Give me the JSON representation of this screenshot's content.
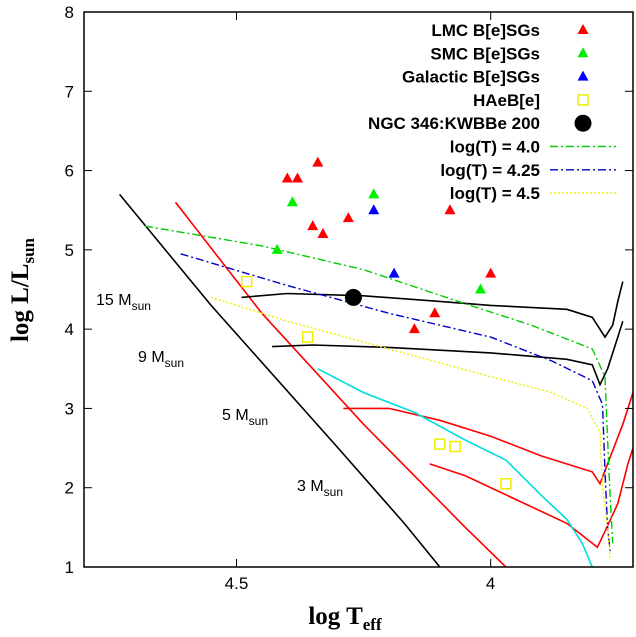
{
  "chart_data": {
    "type": "scatter",
    "title": "",
    "xlabel": {
      "main": "log  T",
      "sub": "eff"
    },
    "ylabel": {
      "main": "log  L/L",
      "sub": "sun"
    },
    "xlim": [
      4.8,
      3.72
    ],
    "xscale": "reversed",
    "ylim": [
      1,
      8
    ],
    "xticks": [
      {
        "value": 4.5,
        "label": "4.5"
      },
      {
        "value": 4.0,
        "label": "4"
      }
    ],
    "yticks": [
      {
        "value": 1,
        "label": "1"
      },
      {
        "value": 2,
        "label": "2"
      },
      {
        "value": 3,
        "label": "3"
      },
      {
        "value": 4,
        "label": "4"
      },
      {
        "value": 5,
        "label": "5"
      },
      {
        "value": 6,
        "label": "6"
      },
      {
        "value": 7,
        "label": "7"
      },
      {
        "value": 8,
        "label": "8"
      }
    ],
    "legend_position": "top-right",
    "series": [
      {
        "name": "LMC B[e]SGs",
        "marker": "triangle",
        "color": "#ff0000",
        "points": [
          {
            "x": 4.4,
            "y": 5.9
          },
          {
            "x": 4.38,
            "y": 5.9
          },
          {
            "x": 4.34,
            "y": 6.1
          },
          {
            "x": 4.35,
            "y": 5.3
          },
          {
            "x": 4.33,
            "y": 5.2
          },
          {
            "x": 4.28,
            "y": 5.4
          },
          {
            "x": 4.08,
            "y": 5.5
          },
          {
            "x": 4.0,
            "y": 4.7
          },
          {
            "x": 4.11,
            "y": 4.2
          },
          {
            "x": 4.15,
            "y": 4.0
          }
        ]
      },
      {
        "name": "SMC B[e]SGs",
        "marker": "triangle",
        "color": "#00ee00",
        "points": [
          {
            "x": 4.39,
            "y": 5.6
          },
          {
            "x": 4.42,
            "y": 5.0
          },
          {
            "x": 4.23,
            "y": 5.7
          },
          {
            "x": 4.02,
            "y": 4.5
          }
        ]
      },
      {
        "name": "Galactic B[e]SGs",
        "marker": "triangle",
        "color": "#0000ff",
        "points": [
          {
            "x": 4.23,
            "y": 5.5
          },
          {
            "x": 4.19,
            "y": 4.7
          }
        ]
      },
      {
        "name": "HAeB[e]",
        "marker": "open-square",
        "color": "#eeee00",
        "points": [
          {
            "x": 4.48,
            "y": 4.6
          },
          {
            "x": 4.36,
            "y": 3.9
          },
          {
            "x": 4.1,
            "y": 2.55
          },
          {
            "x": 4.07,
            "y": 2.52
          },
          {
            "x": 3.97,
            "y": 2.05
          }
        ]
      },
      {
        "name": "NGC 346:KWBBe 200",
        "marker": "filled-circle",
        "color": "#000000",
        "points": [
          {
            "x": 4.27,
            "y": 4.4
          }
        ]
      },
      {
        "name": "log(T) = 4.0",
        "marker": "line",
        "dash": "dash-dot",
        "color": "#00cc00",
        "points": [
          {
            "x": 4.68,
            "y": 5.3
          },
          {
            "x": 4.45,
            "y": 5.05
          },
          {
            "x": 4.25,
            "y": 4.75
          },
          {
            "x": 4.05,
            "y": 4.32
          },
          {
            "x": 3.92,
            "y": 4.05
          },
          {
            "x": 3.8,
            "y": 3.75
          },
          {
            "x": 3.775,
            "y": 3.4
          },
          {
            "x": 3.77,
            "y": 2.6
          },
          {
            "x": 3.765,
            "y": 1.9
          },
          {
            "x": 3.76,
            "y": 1.3
          }
        ]
      },
      {
        "name": "log(T) = 4.25",
        "marker": "line",
        "dash": "dash-dot",
        "color": "#0000cc",
        "points": [
          {
            "x": 4.61,
            "y": 4.95
          },
          {
            "x": 4.4,
            "y": 4.55
          },
          {
            "x": 4.2,
            "y": 4.2
          },
          {
            "x": 4.0,
            "y": 3.9
          },
          {
            "x": 3.88,
            "y": 3.6
          },
          {
            "x": 3.8,
            "y": 3.35
          },
          {
            "x": 3.78,
            "y": 3.05
          },
          {
            "x": 3.775,
            "y": 2.2
          },
          {
            "x": 3.77,
            "y": 1.5
          },
          {
            "x": 3.765,
            "y": 1.2
          }
        ]
      },
      {
        "name": "log(T) = 4.5",
        "marker": "line",
        "dash": "dotted",
        "color": "#eeee00",
        "points": [
          {
            "x": 4.55,
            "y": 4.4
          },
          {
            "x": 4.4,
            "y": 4.1
          },
          {
            "x": 4.2,
            "y": 3.75
          },
          {
            "x": 4.0,
            "y": 3.4
          },
          {
            "x": 3.88,
            "y": 3.2
          },
          {
            "x": 3.81,
            "y": 3.0
          },
          {
            "x": 3.785,
            "y": 2.7
          },
          {
            "x": 3.78,
            "y": 2.0
          },
          {
            "x": 3.77,
            "y": 1.5
          },
          {
            "x": 3.765,
            "y": 1.1
          }
        ]
      }
    ],
    "tracks": [
      {
        "label": "15 M",
        "label_sub": "sun",
        "color": "#000000",
        "points": [
          {
            "x": 4.49,
            "y": 4.4
          },
          {
            "x": 4.4,
            "y": 4.45
          },
          {
            "x": 4.25,
            "y": 4.42
          },
          {
            "x": 4.1,
            "y": 4.35
          },
          {
            "x": 4.0,
            "y": 4.3
          },
          {
            "x": 3.85,
            "y": 4.25
          },
          {
            "x": 3.8,
            "y": 4.15
          },
          {
            "x": 3.775,
            "y": 3.9
          },
          {
            "x": 3.76,
            "y": 4.05
          },
          {
            "x": 3.75,
            "y": 4.35
          },
          {
            "x": 3.74,
            "y": 4.6
          }
        ]
      },
      {
        "label": "9 M",
        "label_sub": "sun",
        "color": "#000000",
        "points": [
          {
            "x": 4.43,
            "y": 3.78
          },
          {
            "x": 4.35,
            "y": 3.8
          },
          {
            "x": 4.2,
            "y": 3.77
          },
          {
            "x": 4.0,
            "y": 3.7
          },
          {
            "x": 3.85,
            "y": 3.62
          },
          {
            "x": 3.8,
            "y": 3.55
          },
          {
            "x": 3.785,
            "y": 3.3
          },
          {
            "x": 3.77,
            "y": 3.5
          },
          {
            "x": 3.75,
            "y": 3.9
          },
          {
            "x": 3.74,
            "y": 4.1
          }
        ]
      },
      {
        "label": "5 M",
        "label_sub": "sun",
        "color": "#ff0000",
        "points": [
          {
            "x": 4.29,
            "y": 3.0
          },
          {
            "x": 4.2,
            "y": 3.0
          },
          {
            "x": 4.1,
            "y": 2.85
          },
          {
            "x": 4.0,
            "y": 2.65
          },
          {
            "x": 3.9,
            "y": 2.4
          },
          {
            "x": 3.8,
            "y": 2.2
          },
          {
            "x": 3.785,
            "y": 2.05
          },
          {
            "x": 3.77,
            "y": 2.3
          },
          {
            "x": 3.74,
            "y": 2.8
          },
          {
            "x": 3.72,
            "y": 3.2
          }
        ]
      },
      {
        "label": "3 M",
        "label_sub": "sun",
        "color": "#ff0000",
        "points": [
          {
            "x": 4.12,
            "y": 2.3
          },
          {
            "x": 4.05,
            "y": 2.15
          },
          {
            "x": 3.95,
            "y": 1.85
          },
          {
            "x": 3.85,
            "y": 1.55
          },
          {
            "x": 3.8,
            "y": 1.3
          },
          {
            "x": 3.79,
            "y": 1.25
          },
          {
            "x": 3.775,
            "y": 1.45
          },
          {
            "x": 3.75,
            "y": 1.8
          },
          {
            "x": 3.73,
            "y": 2.3
          },
          {
            "x": 3.72,
            "y": 2.5
          }
        ]
      },
      {
        "label": "",
        "label_sub": "",
        "color": "#00dddd",
        "points": [
          {
            "x": 4.34,
            "y": 3.5
          },
          {
            "x": 4.25,
            "y": 3.2
          },
          {
            "x": 4.15,
            "y": 2.95
          },
          {
            "x": 4.05,
            "y": 2.6
          },
          {
            "x": 3.97,
            "y": 2.35
          },
          {
            "x": 3.9,
            "y": 1.9
          },
          {
            "x": 3.85,
            "y": 1.6
          },
          {
            "x": 3.82,
            "y": 1.3
          },
          {
            "x": 3.8,
            "y": 1.0
          }
        ]
      }
    ],
    "zams": [
      {
        "color": "#000000",
        "points": [
          {
            "x": 4.73,
            "y": 5.7
          },
          {
            "x": 4.55,
            "y": 4.3
          },
          {
            "x": 4.3,
            "y": 2.5
          },
          {
            "x": 4.17,
            "y": 1.55
          },
          {
            "x": 4.1,
            "y": 1.0
          }
        ]
      },
      {
        "color": "#ff0000",
        "points": [
          {
            "x": 4.62,
            "y": 5.6
          },
          {
            "x": 4.45,
            "y": 4.2
          },
          {
            "x": 4.25,
            "y": 2.8
          },
          {
            "x": 4.05,
            "y": 1.5
          },
          {
            "x": 3.97,
            "y": 1.0
          }
        ]
      }
    ]
  }
}
